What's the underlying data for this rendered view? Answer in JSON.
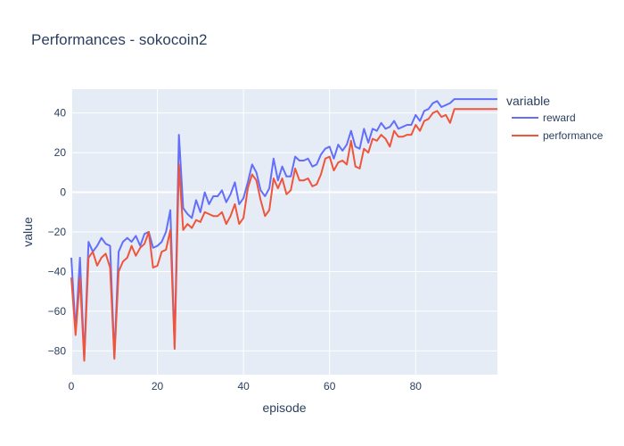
{
  "chart_data": {
    "type": "line",
    "title": "Performances - sokocoin2",
    "xlabel": "episode",
    "ylabel": "value",
    "xlim": [
      0,
      99
    ],
    "ylim": [
      -92,
      52
    ],
    "x_ticks": [
      0,
      20,
      40,
      60,
      80
    ],
    "y_ticks": [
      -80,
      -60,
      -40,
      -20,
      0,
      20,
      40
    ],
    "grid": true,
    "legend_title": "variable",
    "legend_position": "top-right outside",
    "plot_bg": "#e5ecf6",
    "x": [
      0,
      1,
      2,
      3,
      4,
      5,
      6,
      7,
      8,
      9,
      10,
      11,
      12,
      13,
      14,
      15,
      16,
      17,
      18,
      19,
      20,
      21,
      22,
      23,
      24,
      25,
      26,
      27,
      28,
      29,
      30,
      31,
      32,
      33,
      34,
      35,
      36,
      37,
      38,
      39,
      40,
      41,
      42,
      43,
      44,
      45,
      46,
      47,
      48,
      49,
      50,
      51,
      52,
      53,
      54,
      55,
      56,
      57,
      58,
      59,
      60,
      61,
      62,
      63,
      64,
      65,
      66,
      67,
      68,
      69,
      70,
      71,
      72,
      73,
      74,
      75,
      76,
      77,
      78,
      79,
      80,
      81,
      82,
      83,
      84,
      85,
      86,
      87,
      88,
      89,
      90,
      91,
      92,
      93,
      94,
      95,
      96,
      97,
      98,
      99
    ],
    "series": [
      {
        "name": "reward",
        "color": "#636efa",
        "values": [
          -33,
          -70,
          -33,
          -84,
          -25,
          -30,
          -27,
          -23,
          -26,
          -27,
          -83,
          -30,
          -25,
          -23,
          -25,
          -22,
          -27,
          -21,
          -20,
          -28,
          -27,
          -25,
          -20,
          -9,
          -78,
          29,
          -8,
          -11,
          -13,
          -4,
          -10,
          0,
          -6,
          -2,
          -2,
          1,
          -5,
          -1,
          5,
          -6,
          -3,
          5,
          14,
          10,
          1,
          -2,
          2,
          17,
          6,
          13,
          8,
          8,
          18,
          16,
          16,
          17,
          13,
          14,
          19,
          22,
          23,
          17,
          24,
          21,
          24,
          31,
          23,
          22,
          32,
          25,
          32,
          31,
          35,
          32,
          33,
          36,
          32,
          33,
          34,
          34,
          39,
          36,
          41,
          42,
          45,
          46,
          43,
          44,
          45,
          47,
          47,
          47,
          47,
          47,
          47,
          47,
          47,
          47,
          47,
          47
        ]
      },
      {
        "name": "performance",
        "color": "#ef553b",
        "values": [
          -43,
          -72,
          -43,
          -85,
          -33,
          -30,
          -37,
          -33,
          -31,
          -38,
          -84,
          -40,
          -35,
          -33,
          -27,
          -32,
          -28,
          -26,
          -20,
          -38,
          -37,
          -30,
          -29,
          -19,
          -79,
          14,
          -19,
          -16,
          -18,
          -14,
          -15,
          -10,
          -11,
          -12,
          -12,
          -10,
          -16,
          -12,
          -6,
          -16,
          -13,
          2,
          9,
          6,
          -4,
          -12,
          -9,
          7,
          2,
          7,
          -1,
          1,
          12,
          6,
          6,
          7,
          3,
          4,
          9,
          17,
          18,
          11,
          15,
          16,
          14,
          26,
          13,
          12,
          22,
          20,
          27,
          26,
          29,
          27,
          23,
          31,
          28,
          28,
          29,
          29,
          34,
          31,
          36,
          37,
          40,
          41,
          38,
          39,
          35,
          42,
          42,
          42,
          42,
          42,
          42,
          42,
          42,
          42,
          42,
          42
        ]
      }
    ]
  }
}
